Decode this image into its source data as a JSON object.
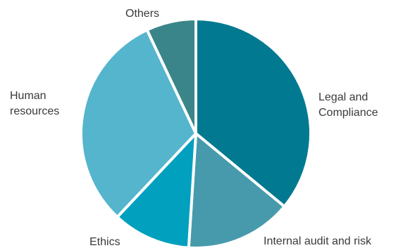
{
  "chart_data": {
    "type": "pie",
    "title": "",
    "start_angle_deg": 0,
    "direction": "clockwise",
    "slices": [
      {
        "label": "Legal and Compliance",
        "label_lines": [
          "Legal and",
          "Compliance"
        ],
        "value": 36,
        "color": "#007991"
      },
      {
        "label": "Internal audit and risk",
        "label_lines": [
          "Internal audit and risk"
        ],
        "value": 15,
        "color": "#479AAC"
      },
      {
        "label": "Ethics",
        "label_lines": [
          "Ethics"
        ],
        "value": 11,
        "color": "#00A0BE"
      },
      {
        "label": "Human resources",
        "label_lines": [
          "Human",
          "resources"
        ],
        "value": 31,
        "color": "#54B5CD"
      },
      {
        "label": "Others",
        "label_lines": [
          "Others"
        ],
        "value": 7,
        "color": "#3A8589"
      }
    ]
  }
}
